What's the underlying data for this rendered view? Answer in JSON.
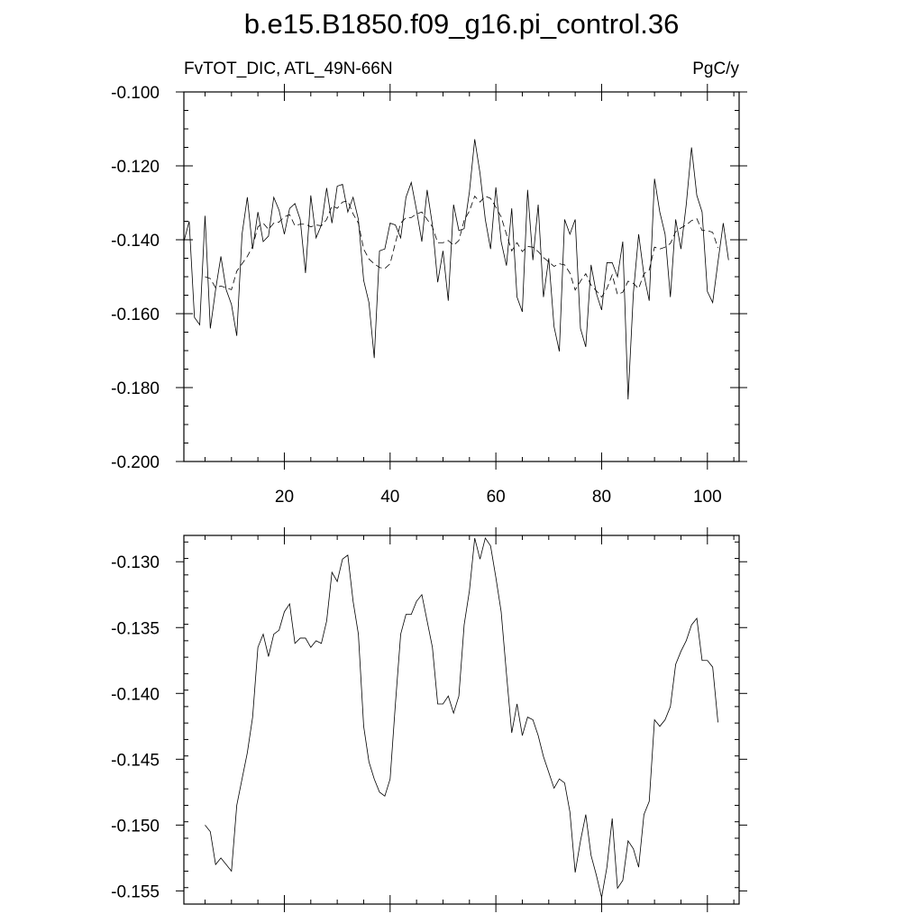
{
  "figure": {
    "title": "b.e15.B1850.f09_g16.pi_control.36",
    "left_label": "FvTOT_DIC, ATL_49N-66N",
    "right_label": "PgC/y"
  },
  "chart_data": [
    {
      "type": "line",
      "xlim": [
        1,
        106
      ],
      "ylim": [
        -0.2,
        -0.1
      ],
      "x_ticks": [
        20,
        40,
        60,
        80,
        100
      ],
      "y_ticks": [
        -0.2,
        -0.18,
        -0.16,
        -0.14,
        -0.12,
        -0.1
      ],
      "y_tick_labels": [
        "-0.200",
        "-0.180",
        "-0.160",
        "-0.140",
        "-0.120",
        "-0.100"
      ],
      "x_tick_labels": [
        "20",
        "40",
        "60",
        "80",
        "100"
      ],
      "series": [
        {
          "style": "solid",
          "x_start": 1,
          "values": [
            -0.1405,
            -0.135,
            -0.161,
            -0.163,
            -0.1335,
            -0.164,
            -0.1535,
            -0.1445,
            -0.1535,
            -0.1575,
            -0.166,
            -0.1385,
            -0.1285,
            -0.1425,
            -0.1325,
            -0.1405,
            -0.139,
            -0.1285,
            -0.132,
            -0.1385,
            -0.1315,
            -0.1302,
            -0.1345,
            -0.149,
            -0.128,
            -0.1395,
            -0.136,
            -0.126,
            -0.1355,
            -0.1255,
            -0.125,
            -0.1325,
            -0.1285,
            -0.1345,
            -0.151,
            -0.157,
            -0.172,
            -0.143,
            -0.1425,
            -0.1355,
            -0.136,
            -0.1395,
            -0.1285,
            -0.1245,
            -0.132,
            -0.1405,
            -0.1265,
            -0.136,
            -0.1515,
            -0.143,
            -0.1565,
            -0.1305,
            -0.1375,
            -0.137,
            -0.127,
            -0.1128,
            -0.122,
            -0.1345,
            -0.1425,
            -0.1258,
            -0.1405,
            -0.147,
            -0.1315,
            -0.1555,
            -0.1595,
            -0.1265,
            -0.1455,
            -0.1305,
            -0.1555,
            -0.145,
            -0.1635,
            -0.1702,
            -0.1345,
            -0.1385,
            -0.1345,
            -0.164,
            -0.169,
            -0.1468,
            -0.1545,
            -0.159,
            -0.1462,
            -0.1462,
            -0.15,
            -0.1405,
            -0.1832,
            -0.1545,
            -0.1385,
            -0.1495,
            -0.1565,
            -0.1235,
            -0.1325,
            -0.1385,
            -0.1555,
            -0.1345,
            -0.1425,
            -0.1305,
            -0.115,
            -0.128,
            -0.1325,
            -0.154,
            -0.157,
            -0.146,
            -0.1355,
            -0.1455
          ]
        },
        {
          "style": "dashed",
          "x_start": 5,
          "values": [
            -0.15,
            -0.1505,
            -0.153,
            -0.1525,
            -0.153,
            -0.1535,
            -0.1485,
            -0.1465,
            -0.1445,
            -0.1418,
            -0.1365,
            -0.1355,
            -0.1372,
            -0.1355,
            -0.1352,
            -0.1338,
            -0.1332,
            -0.1362,
            -0.1358,
            -0.1358,
            -0.1365,
            -0.136,
            -0.1362,
            -0.1345,
            -0.1308,
            -0.1315,
            -0.1298,
            -0.1295,
            -0.133,
            -0.1355,
            -0.1425,
            -0.1452,
            -0.1465,
            -0.1475,
            -0.1478,
            -0.1465,
            -0.1408,
            -0.1355,
            -0.134,
            -0.134,
            -0.133,
            -0.1325,
            -0.1345,
            -0.1365,
            -0.1408,
            -0.1408,
            -0.1402,
            -0.1415,
            -0.1402,
            -0.1348,
            -0.1322,
            -0.1282,
            -0.1298,
            -0.1282,
            -0.1288,
            -0.1312,
            -0.1338,
            -0.1385,
            -0.143,
            -0.1408,
            -0.1432,
            -0.1418,
            -0.142,
            -0.1432,
            -0.1448,
            -0.146,
            -0.1472,
            -0.1465,
            -0.1468,
            -0.149,
            -0.1536,
            -0.1512,
            -0.1492,
            -0.1523,
            -0.1538,
            -0.1555,
            -0.1532,
            -0.1495,
            -0.1548,
            -0.1542,
            -0.1512,
            -0.1518,
            -0.1532,
            -0.1492,
            -0.1482,
            -0.142,
            -0.1425,
            -0.142,
            -0.141,
            -0.1378,
            -0.1368,
            -0.136,
            -0.1348,
            -0.1343,
            -0.1375,
            -0.1375,
            -0.138,
            -0.1422
          ]
        }
      ]
    },
    {
      "type": "line",
      "xlim": [
        1,
        106
      ],
      "ylim": [
        -0.156,
        -0.128
      ],
      "x_ticks": [
        20,
        40,
        60,
        80,
        100
      ],
      "y_ticks": [
        -0.155,
        -0.15,
        -0.145,
        -0.14,
        -0.135,
        -0.13
      ],
      "y_tick_labels": [
        "-0.155",
        "-0.150",
        "-0.145",
        "-0.140",
        "-0.135",
        "-0.130"
      ],
      "series": [
        {
          "style": "solid",
          "x_start": 5,
          "values": [
            -0.15,
            -0.1505,
            -0.153,
            -0.1525,
            -0.153,
            -0.1535,
            -0.1485,
            -0.1465,
            -0.1445,
            -0.1418,
            -0.1365,
            -0.1355,
            -0.1372,
            -0.1355,
            -0.1352,
            -0.1338,
            -0.1332,
            -0.1362,
            -0.1358,
            -0.1358,
            -0.1365,
            -0.136,
            -0.1362,
            -0.1345,
            -0.1308,
            -0.1315,
            -0.1298,
            -0.1295,
            -0.133,
            -0.1355,
            -0.1425,
            -0.1452,
            -0.1465,
            -0.1475,
            -0.1478,
            -0.1465,
            -0.1408,
            -0.1355,
            -0.134,
            -0.134,
            -0.133,
            -0.1325,
            -0.1345,
            -0.1365,
            -0.1408,
            -0.1408,
            -0.1402,
            -0.1415,
            -0.1402,
            -0.1348,
            -0.1322,
            -0.1282,
            -0.1298,
            -0.1282,
            -0.1288,
            -0.1312,
            -0.1338,
            -0.1385,
            -0.143,
            -0.1408,
            -0.1432,
            -0.1418,
            -0.142,
            -0.1432,
            -0.1448,
            -0.146,
            -0.1472,
            -0.1465,
            -0.1468,
            -0.149,
            -0.1536,
            -0.1512,
            -0.1492,
            -0.1523,
            -0.1538,
            -0.1555,
            -0.1532,
            -0.1495,
            -0.1548,
            -0.1542,
            -0.1512,
            -0.1518,
            -0.1532,
            -0.1492,
            -0.1482,
            -0.142,
            -0.1425,
            -0.142,
            -0.141,
            -0.1378,
            -0.1368,
            -0.136,
            -0.1348,
            -0.1343,
            -0.1375,
            -0.1375,
            -0.138,
            -0.1422
          ]
        }
      ]
    }
  ]
}
